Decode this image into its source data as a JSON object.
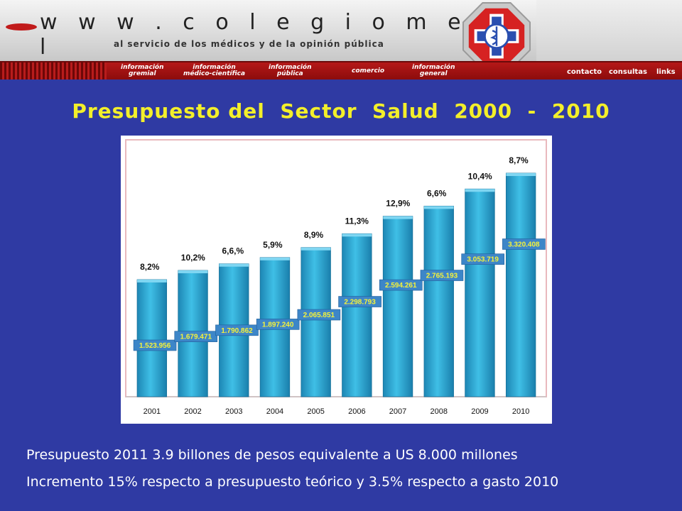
{
  "banner": {
    "url": "w w w . c o l e g i o m e d i c o . c l",
    "tagline": "al servicio de los médicos y de la opinión pública"
  },
  "nav": {
    "items": [
      {
        "label": "información\ngremial"
      },
      {
        "label": "información\nmédico-científica"
      },
      {
        "label": "información\npública"
      },
      {
        "label": "comercio"
      },
      {
        "label": "información\ngeneral"
      }
    ],
    "links": [
      {
        "label": "contacto"
      },
      {
        "label": "consultas"
      },
      {
        "label": "links"
      }
    ]
  },
  "title": "Presupuesto del  Sector  Salud  2000  -  2010",
  "chart_data": {
    "type": "bar",
    "categories": [
      "2001",
      "2002",
      "2003",
      "2004",
      "2005",
      "2006",
      "2007",
      "2008",
      "2009",
      "2010"
    ],
    "values": [
      1523956,
      1679471,
      1790862,
      1897240,
      2065851,
      2298793,
      2594261,
      2765193,
      3053719,
      3320408
    ],
    "value_labels": [
      "1.523.956",
      "1.679.471",
      "1.790.862",
      "1.897.240",
      "2.065.851",
      "2.298.793",
      "2.594.261",
      "2.765.193",
      "3.053.719",
      "3.320.408"
    ],
    "growth_labels": [
      "8,2%",
      "10,2%",
      "6,6,%",
      "5,9%",
      "8,9%",
      "11,3%",
      "12,9%",
      "6,6%",
      "10,4%",
      "8,7%"
    ],
    "title": "",
    "xlabel": "",
    "ylabel": "",
    "bar_color": "#2aa7cf",
    "label_box_color": "#3d86c8",
    "label_text_color": "#f5f23a",
    "grid": false
  },
  "notes": [
    "Presupuesto 2011 3.9 billones de pesos equivalente a US 8.000 millones",
    "Incremento 15% respecto a presupuesto teórico y 3.5% respecto a gasto 2010"
  ]
}
